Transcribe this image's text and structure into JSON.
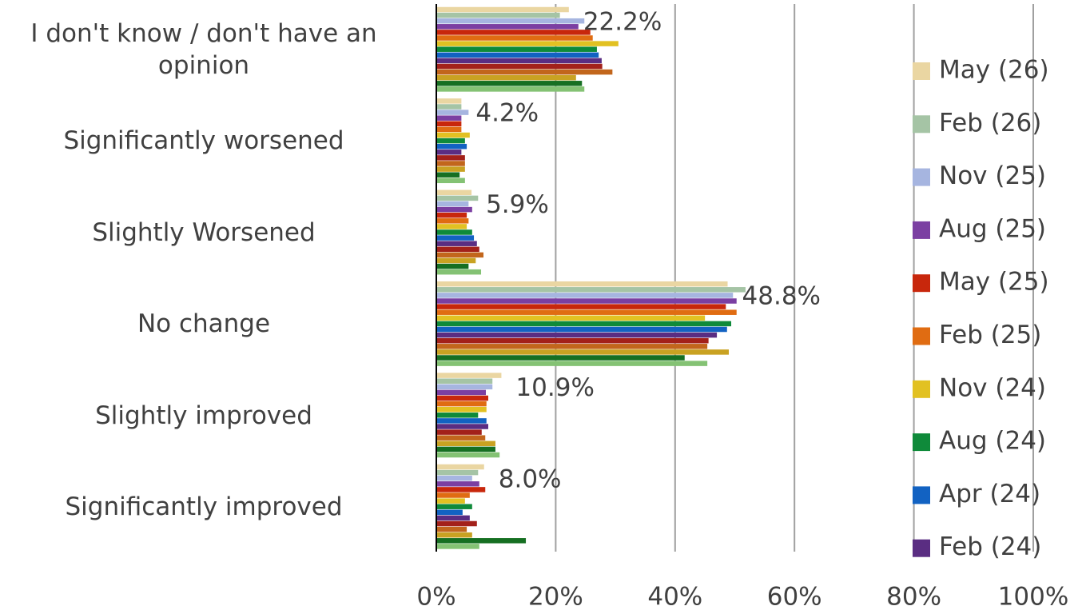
{
  "chart_data": {
    "type": "bar",
    "orientation": "horizontal",
    "categories": [
      "I don't know / don't have an opinion",
      "Significantly worsened",
      "Slightly Worsened",
      "No change",
      "Slightly improved",
      "Significantly improved"
    ],
    "xlim": [
      0,
      100
    ],
    "xticks": [
      {
        "value": 0,
        "label": "0%"
      },
      {
        "value": 20,
        "label": "20%"
      },
      {
        "value": 40,
        "label": "40%"
      },
      {
        "value": 60,
        "label": "60%"
      },
      {
        "value": 80,
        "label": "80%"
      },
      {
        "value": 100,
        "label": "100%"
      }
    ],
    "grid": true,
    "legend": "right",
    "series": [
      {
        "name": "May (26)",
        "color": "#ead6a2",
        "values": [
          22.2,
          4.2,
          5.9,
          48.8,
          10.9,
          8.0
        ],
        "value_labels": [
          "22.2%",
          "4.2%",
          "5.9%",
          "48.8%",
          "10.9%",
          "8.0%"
        ]
      },
      {
        "name": "Feb (26)",
        "color": "#a5c4a5",
        "values": [
          20.7,
          4.2,
          7.0,
          51.8,
          9.4,
          7.0
        ]
      },
      {
        "name": "Nov (25)",
        "color": "#a6b5e0",
        "values": [
          24.8,
          5.4,
          5.4,
          49.7,
          9.4,
          6.0
        ]
      },
      {
        "name": "Aug (25)",
        "color": "#7b3fa2",
        "values": [
          23.8,
          4.2,
          6.0,
          50.3,
          8.3,
          7.2
        ]
      },
      {
        "name": "May (25)",
        "color": "#c8270c",
        "values": [
          25.8,
          4.2,
          5.1,
          48.5,
          8.7,
          8.2
        ]
      },
      {
        "name": "Feb (25)",
        "color": "#e06c12",
        "values": [
          26.2,
          4.2,
          5.4,
          50.3,
          8.4,
          5.6
        ]
      },
      {
        "name": "Nov (24)",
        "color": "#e2c122",
        "values": [
          30.5,
          5.6,
          5.1,
          45.0,
          8.4,
          4.8
        ]
      },
      {
        "name": "Aug (24)",
        "color": "#0f8a3a",
        "values": [
          26.9,
          4.8,
          6.0,
          49.4,
          7.0,
          6.0
        ]
      },
      {
        "name": "Apr (24)",
        "color": "#1262c2",
        "values": [
          27.2,
          5.1,
          6.3,
          48.7,
          8.4,
          4.4
        ]
      },
      {
        "name": "Feb (24)",
        "color": "#5a2d82",
        "values": [
          27.7,
          4.2,
          6.8,
          47.0,
          8.7,
          5.6
        ]
      },
      {
        "color": "#a3211a",
        "values": [
          27.8,
          4.8,
          7.2,
          45.6,
          7.6,
          6.8
        ]
      },
      {
        "color": "#c2661c",
        "values": [
          29.5,
          4.8,
          7.9,
          45.4,
          8.2,
          5.1
        ]
      },
      {
        "color": "#c9a222",
        "values": [
          23.4,
          4.8,
          6.6,
          49.0,
          9.9,
          6.0
        ]
      },
      {
        "color": "#166f22",
        "values": [
          24.4,
          3.9,
          5.4,
          41.6,
          9.9,
          15.0
        ]
      },
      {
        "color": "#84c274",
        "values": [
          24.8,
          4.8,
          7.5,
          45.4,
          10.6,
          7.2
        ]
      }
    ]
  }
}
